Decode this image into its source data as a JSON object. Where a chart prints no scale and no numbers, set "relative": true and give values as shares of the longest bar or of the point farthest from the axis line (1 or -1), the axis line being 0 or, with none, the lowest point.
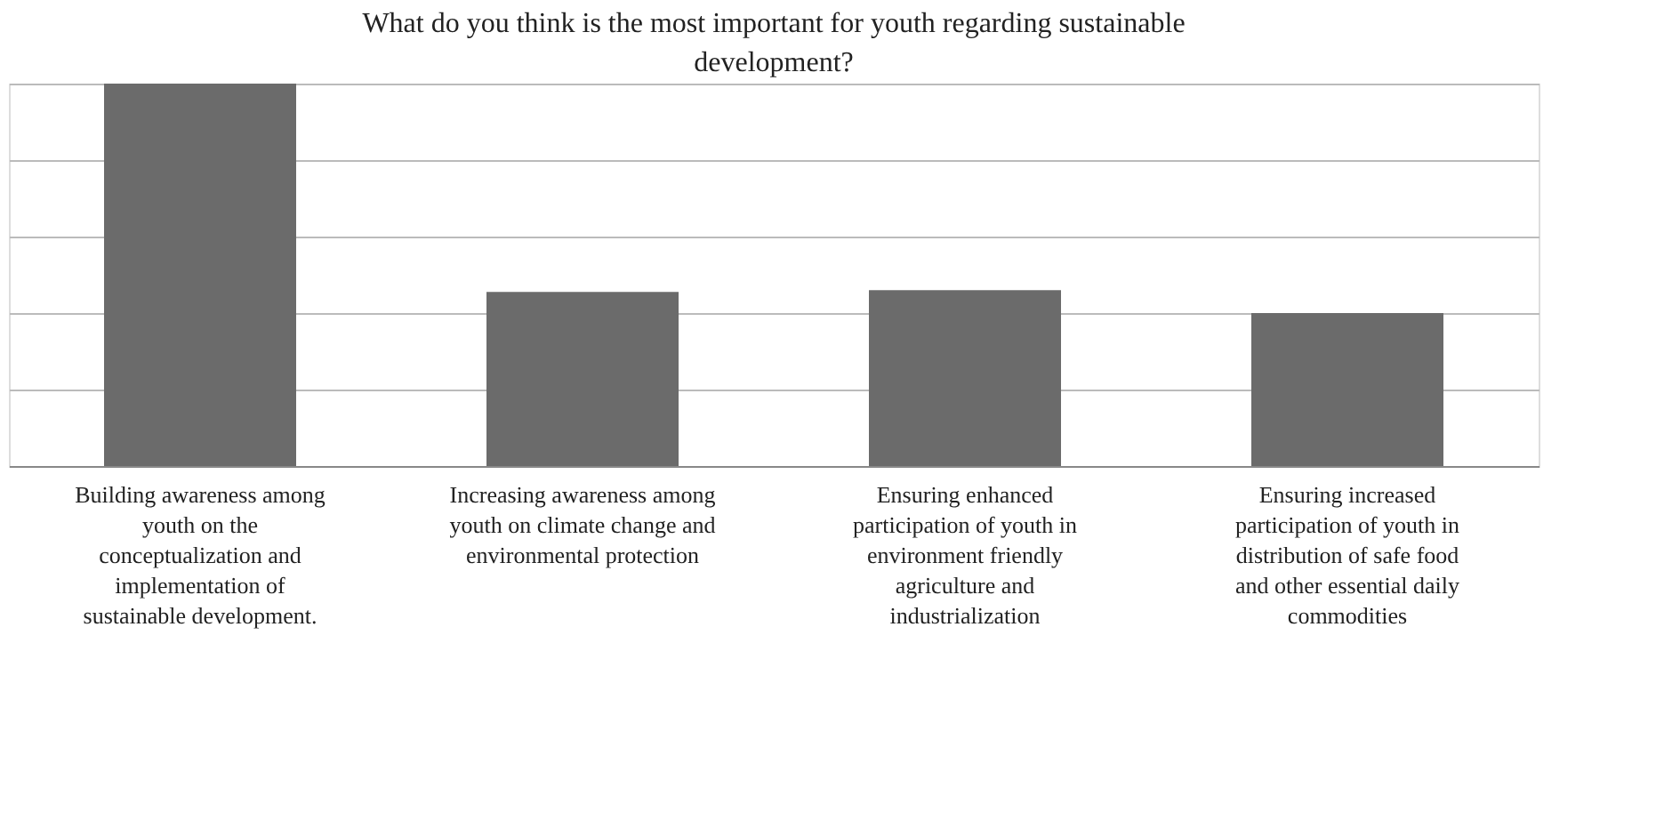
{
  "chart_data": {
    "type": "bar",
    "title": "What do you think is the most important for youth regarding sustainable development?",
    "categories": [
      "Building awareness among youth on the conceptualization and implementation of sustainable development.",
      "Increasing awareness among youth on climate change and environmental protection",
      "Ensuring enhanced participation of youth in environment friendly agriculture and industrialization",
      "Ensuring increased participation of youth in distribution of safe food and other essential daily commodities"
    ],
    "values": [
      1,
      0.455,
      0.46,
      0.4
    ],
    "color": "#6b6b6b",
    "relative": true,
    "grid": "y"
  }
}
